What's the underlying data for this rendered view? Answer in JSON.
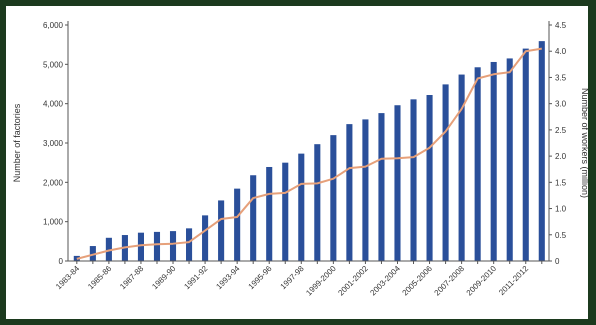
{
  "chart_data": {
    "type": "bar",
    "title": "",
    "xlabel": "",
    "ylabel": "Number of factories",
    "y2label": "Number of workers (million)",
    "ylim": [
      0,
      6000
    ],
    "yticks": [
      0,
      1000,
      2000,
      3000,
      4000,
      5000,
      6000
    ],
    "ytick_labels": [
      "0",
      "1,000",
      "2,000",
      "3,000",
      "4,000",
      "5,000",
      "6,000"
    ],
    "y2lim": [
      0,
      4.5
    ],
    "y2ticks": [
      0,
      0.5,
      1.0,
      1.5,
      2.0,
      2.5,
      3.0,
      3.5,
      4.0,
      4.5
    ],
    "y2tick_labels": [
      "0",
      "0.5",
      "1.0",
      "1.5",
      "2.0",
      "2.5",
      "3.0",
      "3.5",
      "4.0",
      "4.5"
    ],
    "grid": false,
    "categories": [
      "1983-84",
      "1984-85",
      "1985-86",
      "1986-87",
      "1987-88",
      "1988-89",
      "1989-90",
      "1990-91",
      "1991-92",
      "1992-93",
      "1993-94",
      "1994-95",
      "1995-96",
      "1996-97",
      "1997-98",
      "1998-99",
      "1999-2000",
      "2000-01",
      "2001-2002",
      "2002-03",
      "2003-2004",
      "2004-05",
      "2005-2006",
      "2006-07",
      "2007-2008",
      "2008-09",
      "2009-2010",
      "2010-11",
      "2011-2012",
      "2012-13"
    ],
    "xtick_labels": [
      "1983-84",
      "",
      "1985-86",
      "",
      "1987-88",
      "",
      "1989-90",
      "",
      "1991-92",
      "",
      "1993-94",
      "",
      "1995-96",
      "",
      "1997-98",
      "",
      "1999-2000",
      "",
      "2001-2002",
      "",
      "2003-2004",
      "",
      "2005-2006",
      "",
      "2007-2008",
      "",
      "2009-2010",
      "",
      "2011-2012",
      ""
    ],
    "series": [
      {
        "type": "bar",
        "axis": "left",
        "color": "#2a4f9a",
        "values": [
          130,
          380,
          590,
          660,
          720,
          740,
          760,
          830,
          1160,
          1540,
          1840,
          2180,
          2390,
          2500,
          2730,
          2970,
          3200,
          3480,
          3600,
          3760,
          3960,
          4110,
          4220,
          4490,
          4740,
          4925,
          5060,
          5150,
          5400,
          5590
        ]
      },
      {
        "type": "line",
        "axis": "right",
        "color": "#e6a07a",
        "values": [
          0.04,
          0.12,
          0.2,
          0.26,
          0.3,
          0.32,
          0.33,
          0.36,
          0.58,
          0.8,
          0.84,
          1.2,
          1.28,
          1.3,
          1.47,
          1.48,
          1.57,
          1.77,
          1.8,
          1.95,
          1.96,
          1.98,
          2.16,
          2.47,
          2.9,
          3.48,
          3.56,
          3.6,
          4.0,
          4.05
        ]
      }
    ]
  }
}
